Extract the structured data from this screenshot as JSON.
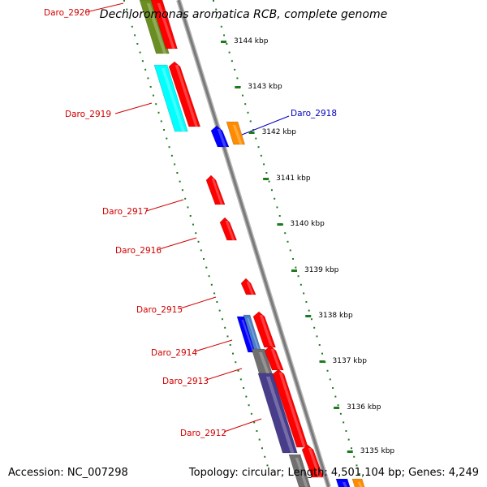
{
  "title": "Dechloromonas aromatica RCB, complete genome",
  "accession": "Accession: NC_007298",
  "summary": "Topology: circular; Length: 4,501,104 bp; Genes: 4,249",
  "colors": {
    "backbone": "#8c8c8c",
    "tick": "#1f7a1f",
    "red": "#ff0000",
    "blue": "#0000ff",
    "orange": "#ff8c00",
    "cyan": "#00ffff",
    "olive": "#6b8e23",
    "navy": "#483d8b",
    "steel": "#4a7fc8",
    "grey": "#707070",
    "label_red": "#d00000",
    "label_blue": "#0000c0"
  },
  "scale": [
    {
      "label": "3144 kbp"
    },
    {
      "label": "3143 kbp"
    },
    {
      "label": "3142 kbp"
    },
    {
      "label": "3141 kbp"
    },
    {
      "label": "3140 kbp"
    },
    {
      "label": "3139 kbp"
    },
    {
      "label": "3138 kbp"
    },
    {
      "label": "3137 kbp"
    },
    {
      "label": "3136 kbp"
    },
    {
      "label": "3135 kbp"
    }
  ],
  "gene_labels": [
    {
      "text": "Daro_2920",
      "color": "red"
    },
    {
      "text": "Daro_2919",
      "color": "red"
    },
    {
      "text": "Daro_2918",
      "color": "blue"
    },
    {
      "text": "Daro_2917",
      "color": "red"
    },
    {
      "text": "Daro_2916",
      "color": "red"
    },
    {
      "text": "Daro_2915",
      "color": "red"
    },
    {
      "text": "Daro_2914",
      "color": "red"
    },
    {
      "text": "Daro_2913",
      "color": "red"
    },
    {
      "text": "Daro_2912",
      "color": "red"
    }
  ]
}
